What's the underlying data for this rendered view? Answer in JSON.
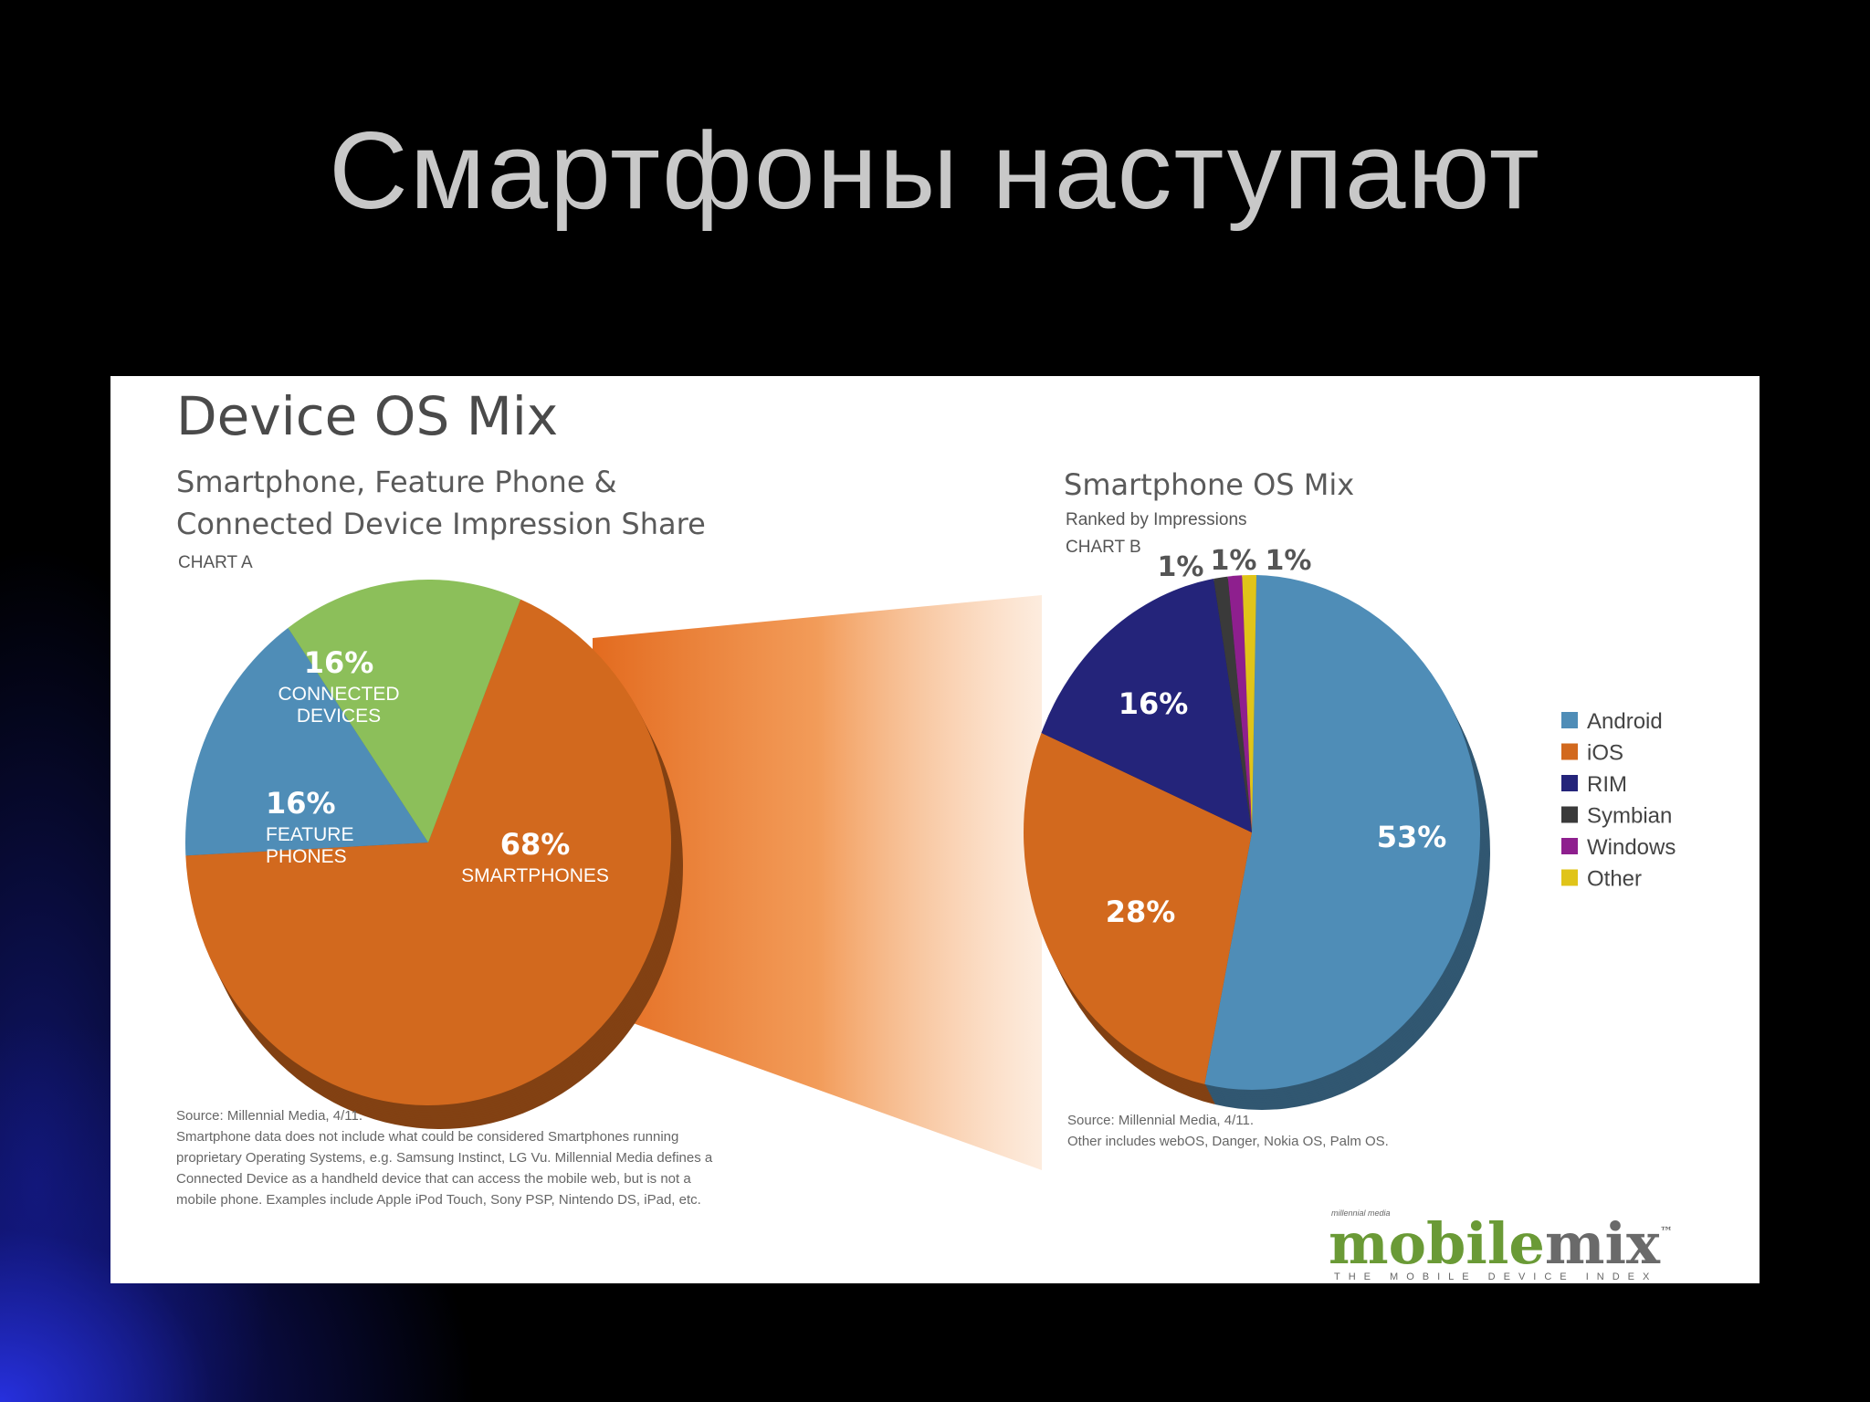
{
  "slide": {
    "title": "Смартфоны наступают"
  },
  "panel": {
    "title": "Device OS Mix",
    "chart_a": {
      "subtitle_line1": "Smartphone, Feature Phone &",
      "subtitle_line2": "Connected Device Impression Share",
      "chart_label": "CHART A",
      "source_lines": [
        "Source: Millennial Media, 4/11.",
        "Smartphone data does not include what could be considered Smartphones running",
        "proprietary Operating Systems, e.g. Samsung Instinct, LG Vu. Millennial Media defines a",
        "Connected Device as a handheld device that can access the mobile web, but is not a",
        "mobile phone. Examples include Apple iPod Touch, Sony PSP, Nintendo DS, iPad, etc."
      ]
    },
    "chart_b": {
      "subtitle": "Smartphone OS Mix",
      "ranked_by": "Ranked by Impressions",
      "chart_label": "CHART B",
      "source_lines": [
        "Source: Millennial Media, 4/11.",
        "Other includes webOS, Danger, Nokia OS, Palm OS."
      ]
    },
    "logo": {
      "small_text": "millennial media",
      "part1": "mobile",
      "part2": "mix",
      "tm": "™",
      "tagline": "THE MOBILE DEVICE INDEX"
    }
  },
  "chart_data": [
    {
      "type": "pie",
      "title": "Smartphone, Feature Phone & Connected Device Impression Share",
      "label": "CHART A",
      "slices": [
        {
          "name": "SMARTPHONES",
          "name_lines": [
            "SMARTPHONES"
          ],
          "value": 68,
          "label": "68%",
          "color": "#d2691e"
        },
        {
          "name": "FEATURE PHONES",
          "name_lines": [
            "FEATURE",
            "PHONES"
          ],
          "value": 16,
          "label": "16%",
          "color": "#4f8db7"
        },
        {
          "name": "CONNECTED DEVICES",
          "name_lines": [
            "CONNECTED",
            "DEVICES"
          ],
          "value": 16,
          "label": "16%",
          "color": "#8cbf5a"
        }
      ]
    },
    {
      "type": "pie",
      "title": "Smartphone OS Mix",
      "subtitle": "Ranked by Impressions",
      "label": "CHART B",
      "slices": [
        {
          "name": "Android",
          "value": 53,
          "label": "53%",
          "color": "#4f8db7"
        },
        {
          "name": "iOS",
          "value": 28,
          "label": "28%",
          "color": "#d2691e"
        },
        {
          "name": "RIM",
          "value": 16,
          "label": "16%",
          "color": "#24247a"
        },
        {
          "name": "Symbian",
          "value": 1,
          "label": "1%",
          "color": "#3a3a3a"
        },
        {
          "name": "Windows",
          "value": 1,
          "label": "1%",
          "color": "#8e1f8e"
        },
        {
          "name": "Other",
          "value": 1,
          "label": "1%",
          "color": "#e0c419"
        }
      ],
      "legend_position": "right"
    }
  ]
}
